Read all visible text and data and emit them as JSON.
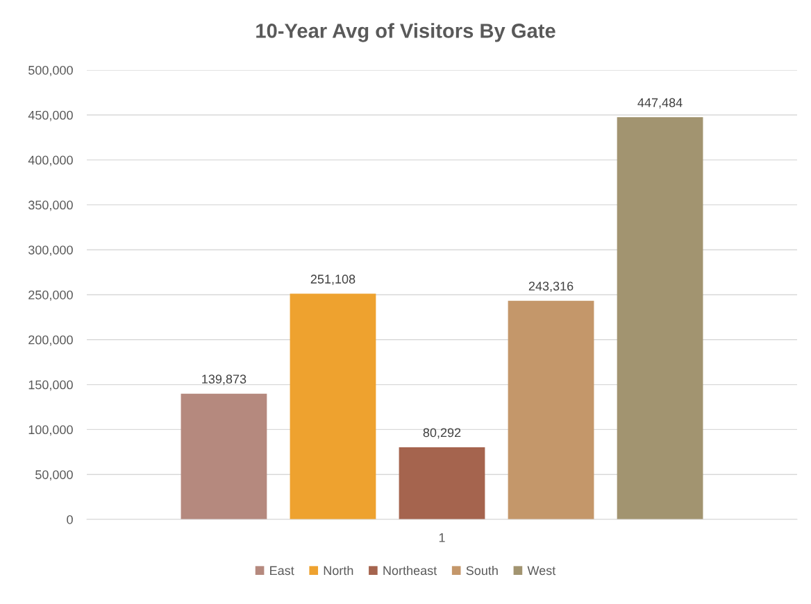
{
  "chart_data": {
    "type": "bar",
    "title": "10-Year Avg of Visitors By Gate",
    "categories": [
      "1"
    ],
    "series": [
      {
        "name": "East",
        "color": "#b5897e",
        "values": [
          139873
        ],
        "value_labels": [
          "139,873"
        ]
      },
      {
        "name": "North",
        "color": "#eea22f",
        "values": [
          251108
        ],
        "value_labels": [
          "251,108"
        ]
      },
      {
        "name": "Northeast",
        "color": "#a5644e",
        "values": [
          80292
        ],
        "value_labels": [
          "80,292"
        ]
      },
      {
        "name": "South",
        "color": "#c4976a",
        "values": [
          243316
        ],
        "value_labels": [
          "243,316"
        ]
      },
      {
        "name": "West",
        "color": "#a29470",
        "values": [
          447484
        ],
        "value_labels": [
          "447,484"
        ]
      }
    ],
    "ylim": [
      0,
      500000
    ],
    "yticks": [
      0,
      {
        "value": 50000,
        "label": "50,000"
      },
      {
        "value": 100000,
        "label": "100,000"
      },
      {
        "value": 150000,
        "label": "150,000"
      },
      {
        "value": 200000,
        "label": "200,000"
      },
      {
        "value": 250000,
        "label": "250,000"
      },
      {
        "value": 300000,
        "label": "300,000"
      },
      {
        "value": 350000,
        "label": "350,000"
      },
      {
        "value": 400000,
        "label": "400,000"
      },
      {
        "value": 450000,
        "label": "450,000"
      },
      {
        "value": 500000,
        "label": "500,000"
      }
    ],
    "grid": "y",
    "legend": "bottom"
  }
}
